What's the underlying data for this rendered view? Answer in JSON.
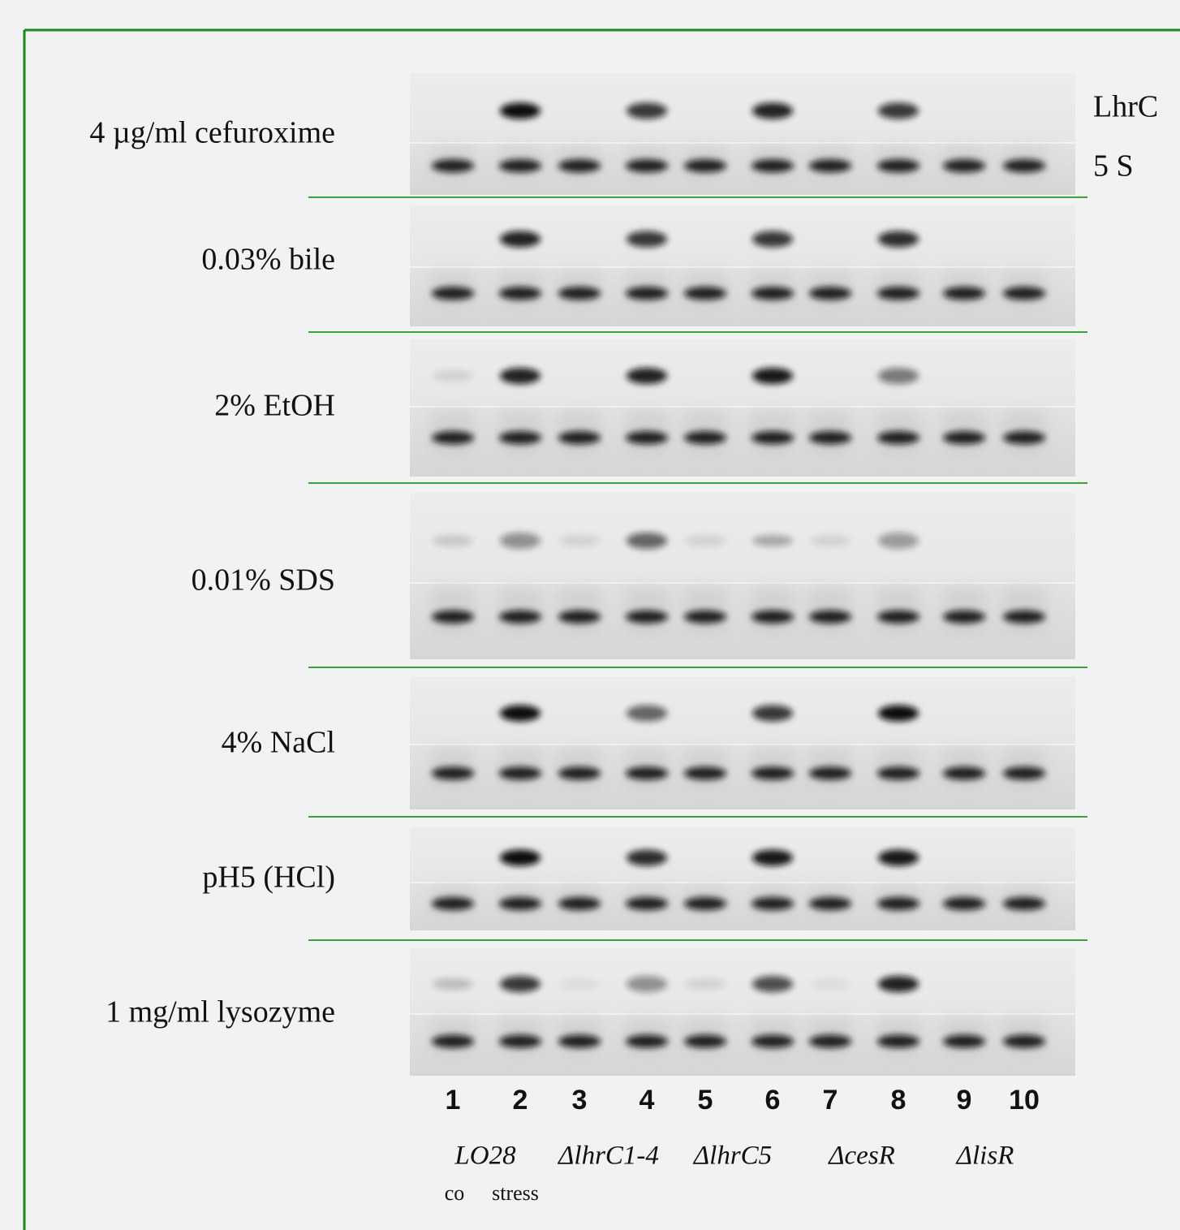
{
  "panels": [
    {
      "condition": "4 µg/ml cefuroxime"
    },
    {
      "condition": "0.03% bile"
    },
    {
      "condition": "2% EtOH"
    },
    {
      "condition": "0.01% SDS"
    },
    {
      "condition": "4% NaCl"
    },
    {
      "condition": "pH5 (HCl)"
    },
    {
      "condition": "1 mg/ml lysozyme"
    }
  ],
  "rna_labels": {
    "lhrc": "LhrC",
    "s5": "5 S"
  },
  "lanes": [
    1,
    2,
    3,
    4,
    5,
    6,
    7,
    8,
    9,
    10
  ],
  "strains": [
    "LO28",
    "ΔlhrC1-4",
    "ΔlhrC5",
    "ΔcesR",
    "ΔlisR"
  ],
  "sample_types": [
    "co",
    "stress"
  ]
}
